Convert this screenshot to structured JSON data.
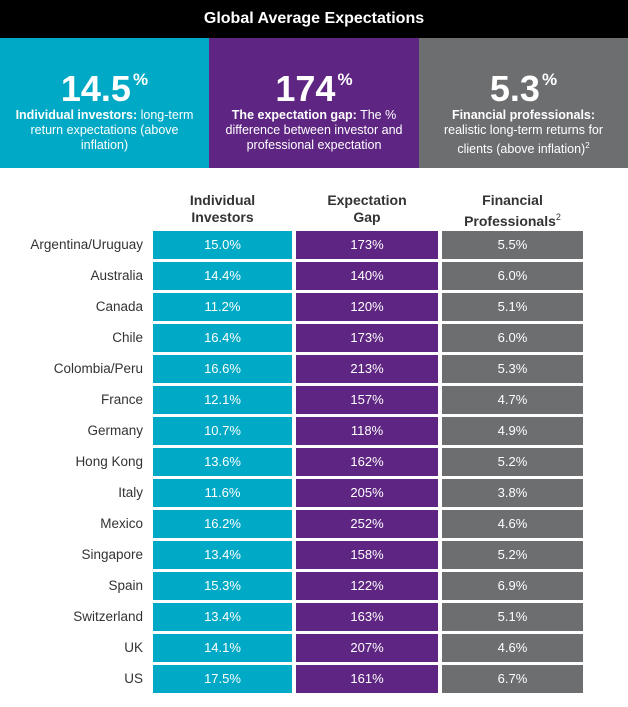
{
  "title": "Global Average Expectations",
  "colors": {
    "individual": "#00a9c5",
    "gap": "#5e2582",
    "professional": "#6d6e70"
  },
  "cards": [
    {
      "value": "14.5",
      "unit": "%",
      "bold": "Individual investors:",
      "text": " long-term return expectations (above inflation)"
    },
    {
      "value": "174",
      "unit": "%",
      "bold": "The expectation gap:",
      "text": " The % difference between investor and professional expectation"
    },
    {
      "value": "5.3",
      "unit": "%",
      "bold": "Financial professionals:",
      "text": "realistic long-term returns for clients (above inflation)",
      "footnote": "2"
    }
  ],
  "columns": {
    "individual": {
      "line1": "Individual",
      "line2": "Investors"
    },
    "gap": {
      "line1": "Expectation",
      "line2": "Gap"
    },
    "professional": {
      "line1": "Financial",
      "line2": "Professionals",
      "footnote": "2"
    }
  },
  "rows": [
    {
      "country": "Argentina/Uruguay",
      "individual": "15.0%",
      "gap": "173%",
      "professional": "5.5%"
    },
    {
      "country": "Australia",
      "individual": "14.4%",
      "gap": "140%",
      "professional": "6.0%"
    },
    {
      "country": "Canada",
      "individual": "11.2%",
      "gap": "120%",
      "professional": "5.1%"
    },
    {
      "country": "Chile",
      "individual": "16.4%",
      "gap": "173%",
      "professional": "6.0%"
    },
    {
      "country": "Colombia/Peru",
      "individual": "16.6%",
      "gap": "213%",
      "professional": "5.3%"
    },
    {
      "country": "France",
      "individual": "12.1%",
      "gap": "157%",
      "professional": "4.7%"
    },
    {
      "country": "Germany",
      "individual": "10.7%",
      "gap": "118%",
      "professional": "4.9%"
    },
    {
      "country": "Hong Kong",
      "individual": "13.6%",
      "gap": "162%",
      "professional": "5.2%"
    },
    {
      "country": "Italy",
      "individual": "11.6%",
      "gap": "205%",
      "professional": "3.8%"
    },
    {
      "country": "Mexico",
      "individual": "16.2%",
      "gap": "252%",
      "professional": "4.6%"
    },
    {
      "country": "Singapore",
      "individual": "13.4%",
      "gap": "158%",
      "professional": "5.2%"
    },
    {
      "country": "Spain",
      "individual": "15.3%",
      "gap": "122%",
      "professional": "6.9%"
    },
    {
      "country": "Switzerland",
      "individual": "13.4%",
      "gap": "163%",
      "professional": "5.1%"
    },
    {
      "country": "UK",
      "individual": "14.1%",
      "gap": "207%",
      "professional": "4.6%"
    },
    {
      "country": "US",
      "individual": "17.5%",
      "gap": "161%",
      "professional": "6.7%"
    }
  ]
}
